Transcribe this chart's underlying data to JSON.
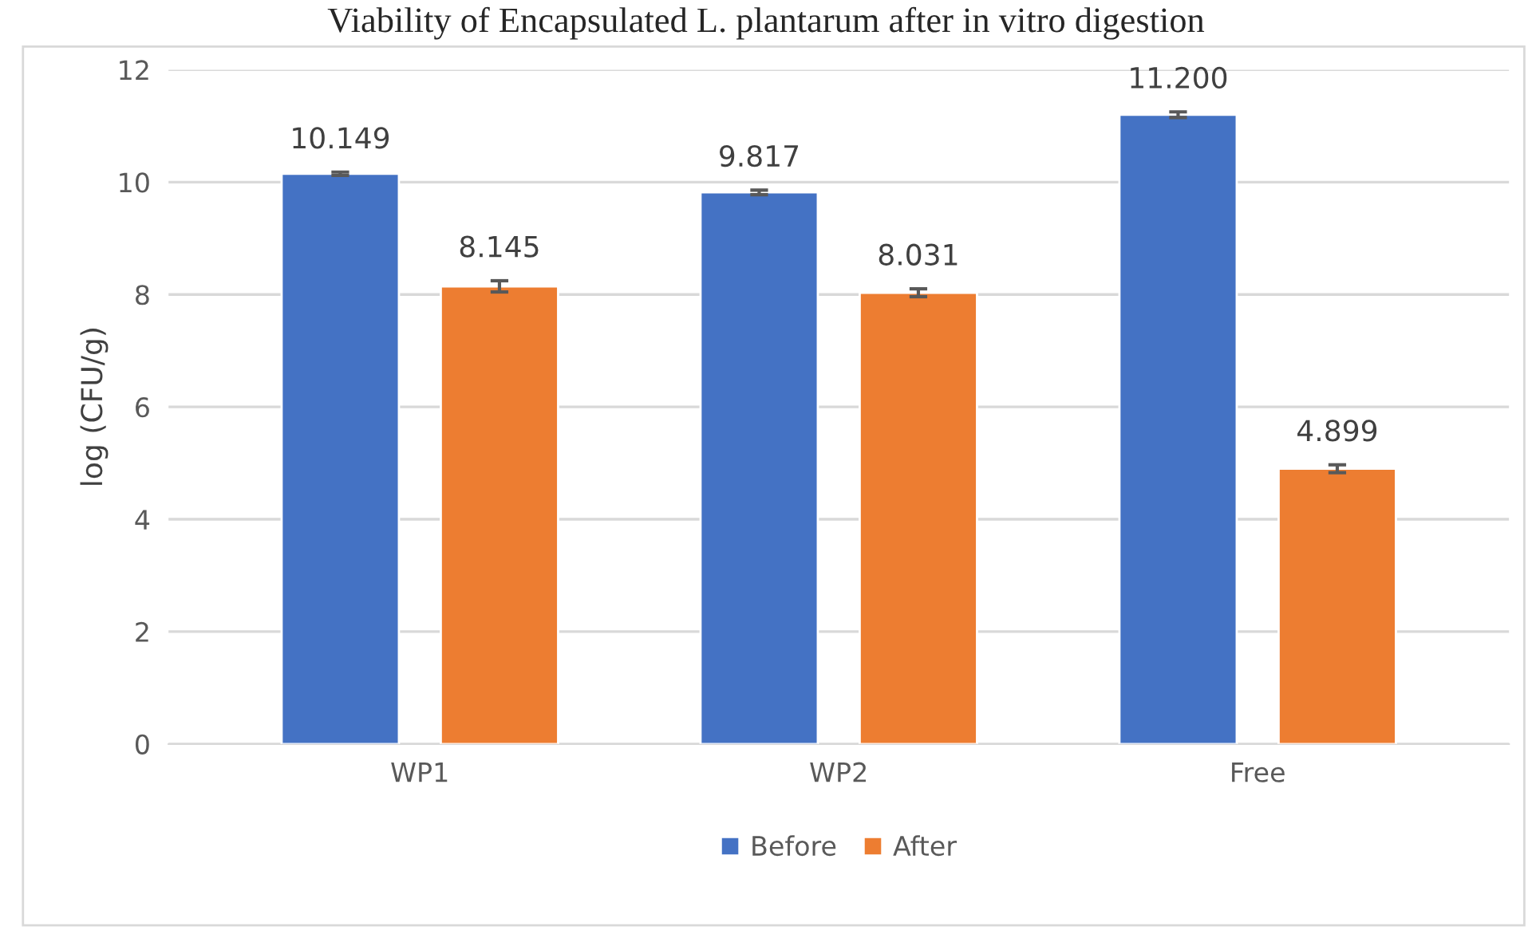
{
  "chart_data": {
    "type": "bar",
    "title": "Viability of Encapsulated L. plantarum after in vitro digestion",
    "ylabel": "log (CFU/g)",
    "categories": [
      "WP1",
      "WP2",
      "Free"
    ],
    "series": [
      {
        "name": "Before",
        "color": "#4472c4",
        "values": [
          10.149,
          9.817,
          11.2
        ],
        "errors": [
          0.03,
          0.04,
          0.05
        ]
      },
      {
        "name": "After",
        "color": "#ed7d31",
        "values": [
          8.145,
          8.031,
          4.899
        ],
        "errors": [
          0.1,
          0.07,
          0.07
        ]
      }
    ],
    "value_labels": [
      [
        "10.149",
        "9.817",
        "11.200"
      ],
      [
        "8.145",
        "8.031",
        "4.899"
      ]
    ],
    "ylim": [
      0,
      12
    ],
    "yticks": [
      0,
      2,
      4,
      6,
      8,
      10,
      12
    ],
    "grid": "y",
    "legend": "bottom"
  }
}
